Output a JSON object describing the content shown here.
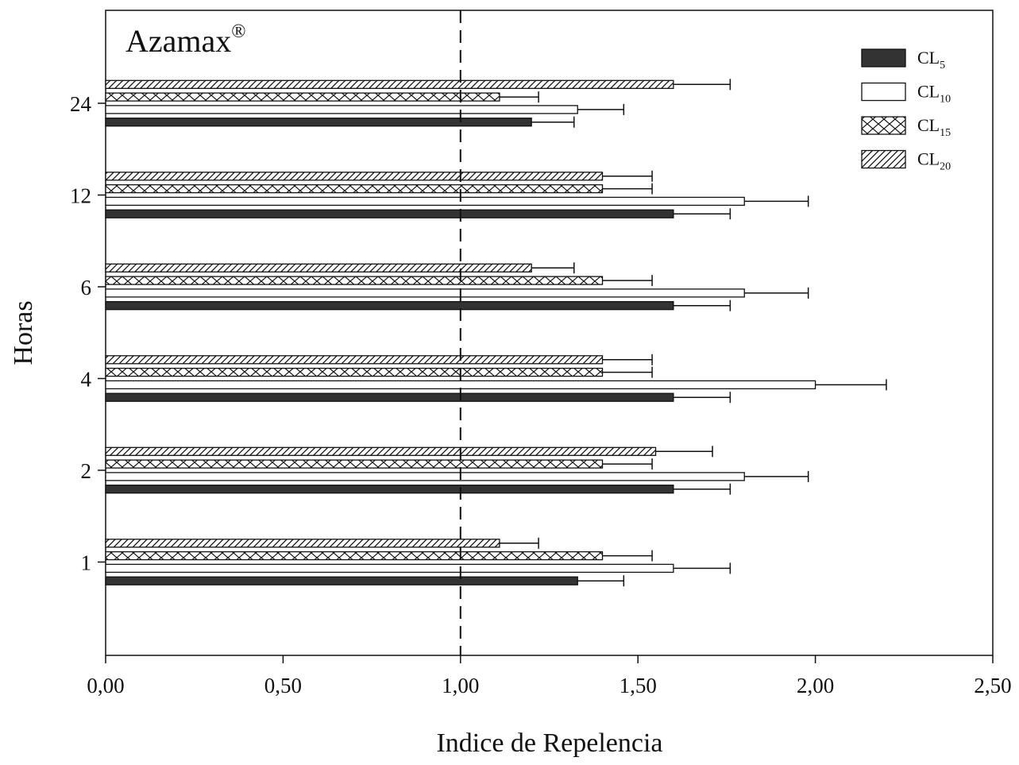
{
  "chart_data": {
    "type": "bar",
    "orientation": "horizontal",
    "title": "Azamax",
    "title_mark": "®",
    "xlabel": "Indice de Repelencia",
    "ylabel": "Horas",
    "xlim": [
      0,
      2.5
    ],
    "xticks": [
      "0,00",
      "0,50",
      "1,00",
      "1,50",
      "2,00",
      "2,50"
    ],
    "xtick_values": [
      0,
      0.5,
      1.0,
      1.5,
      2.0,
      2.5
    ],
    "reference_line": 1.0,
    "grid": false,
    "legend_position": "top-right",
    "categories": [
      "1",
      "2",
      "4",
      "6",
      "12",
      "24"
    ],
    "series": [
      {
        "name": "CL",
        "sub": "5",
        "pattern": "solid",
        "values": [
          1.33,
          1.6,
          1.6,
          1.6,
          1.6,
          1.2
        ],
        "errors": [
          0.13,
          0.16,
          0.16,
          0.16,
          0.16,
          0.12
        ]
      },
      {
        "name": "CL",
        "sub": "10",
        "pattern": "open",
        "values": [
          1.6,
          1.8,
          2.0,
          1.8,
          1.8,
          1.33
        ],
        "errors": [
          0.16,
          0.18,
          0.2,
          0.18,
          0.18,
          0.13
        ]
      },
      {
        "name": "CL",
        "sub": "15",
        "pattern": "crosshatch",
        "values": [
          1.4,
          1.4,
          1.4,
          1.4,
          1.4,
          1.11
        ],
        "errors": [
          0.14,
          0.14,
          0.14,
          0.14,
          0.14,
          0.11
        ]
      },
      {
        "name": "CL",
        "sub": "20",
        "pattern": "diagonal",
        "values": [
          1.11,
          1.55,
          1.4,
          1.2,
          1.4,
          1.6
        ],
        "errors": [
          0.11,
          0.16,
          0.14,
          0.12,
          0.14,
          0.16
        ]
      }
    ],
    "colors": {
      "solid": "#333333",
      "line": "#111111",
      "background": "#ffffff"
    }
  }
}
